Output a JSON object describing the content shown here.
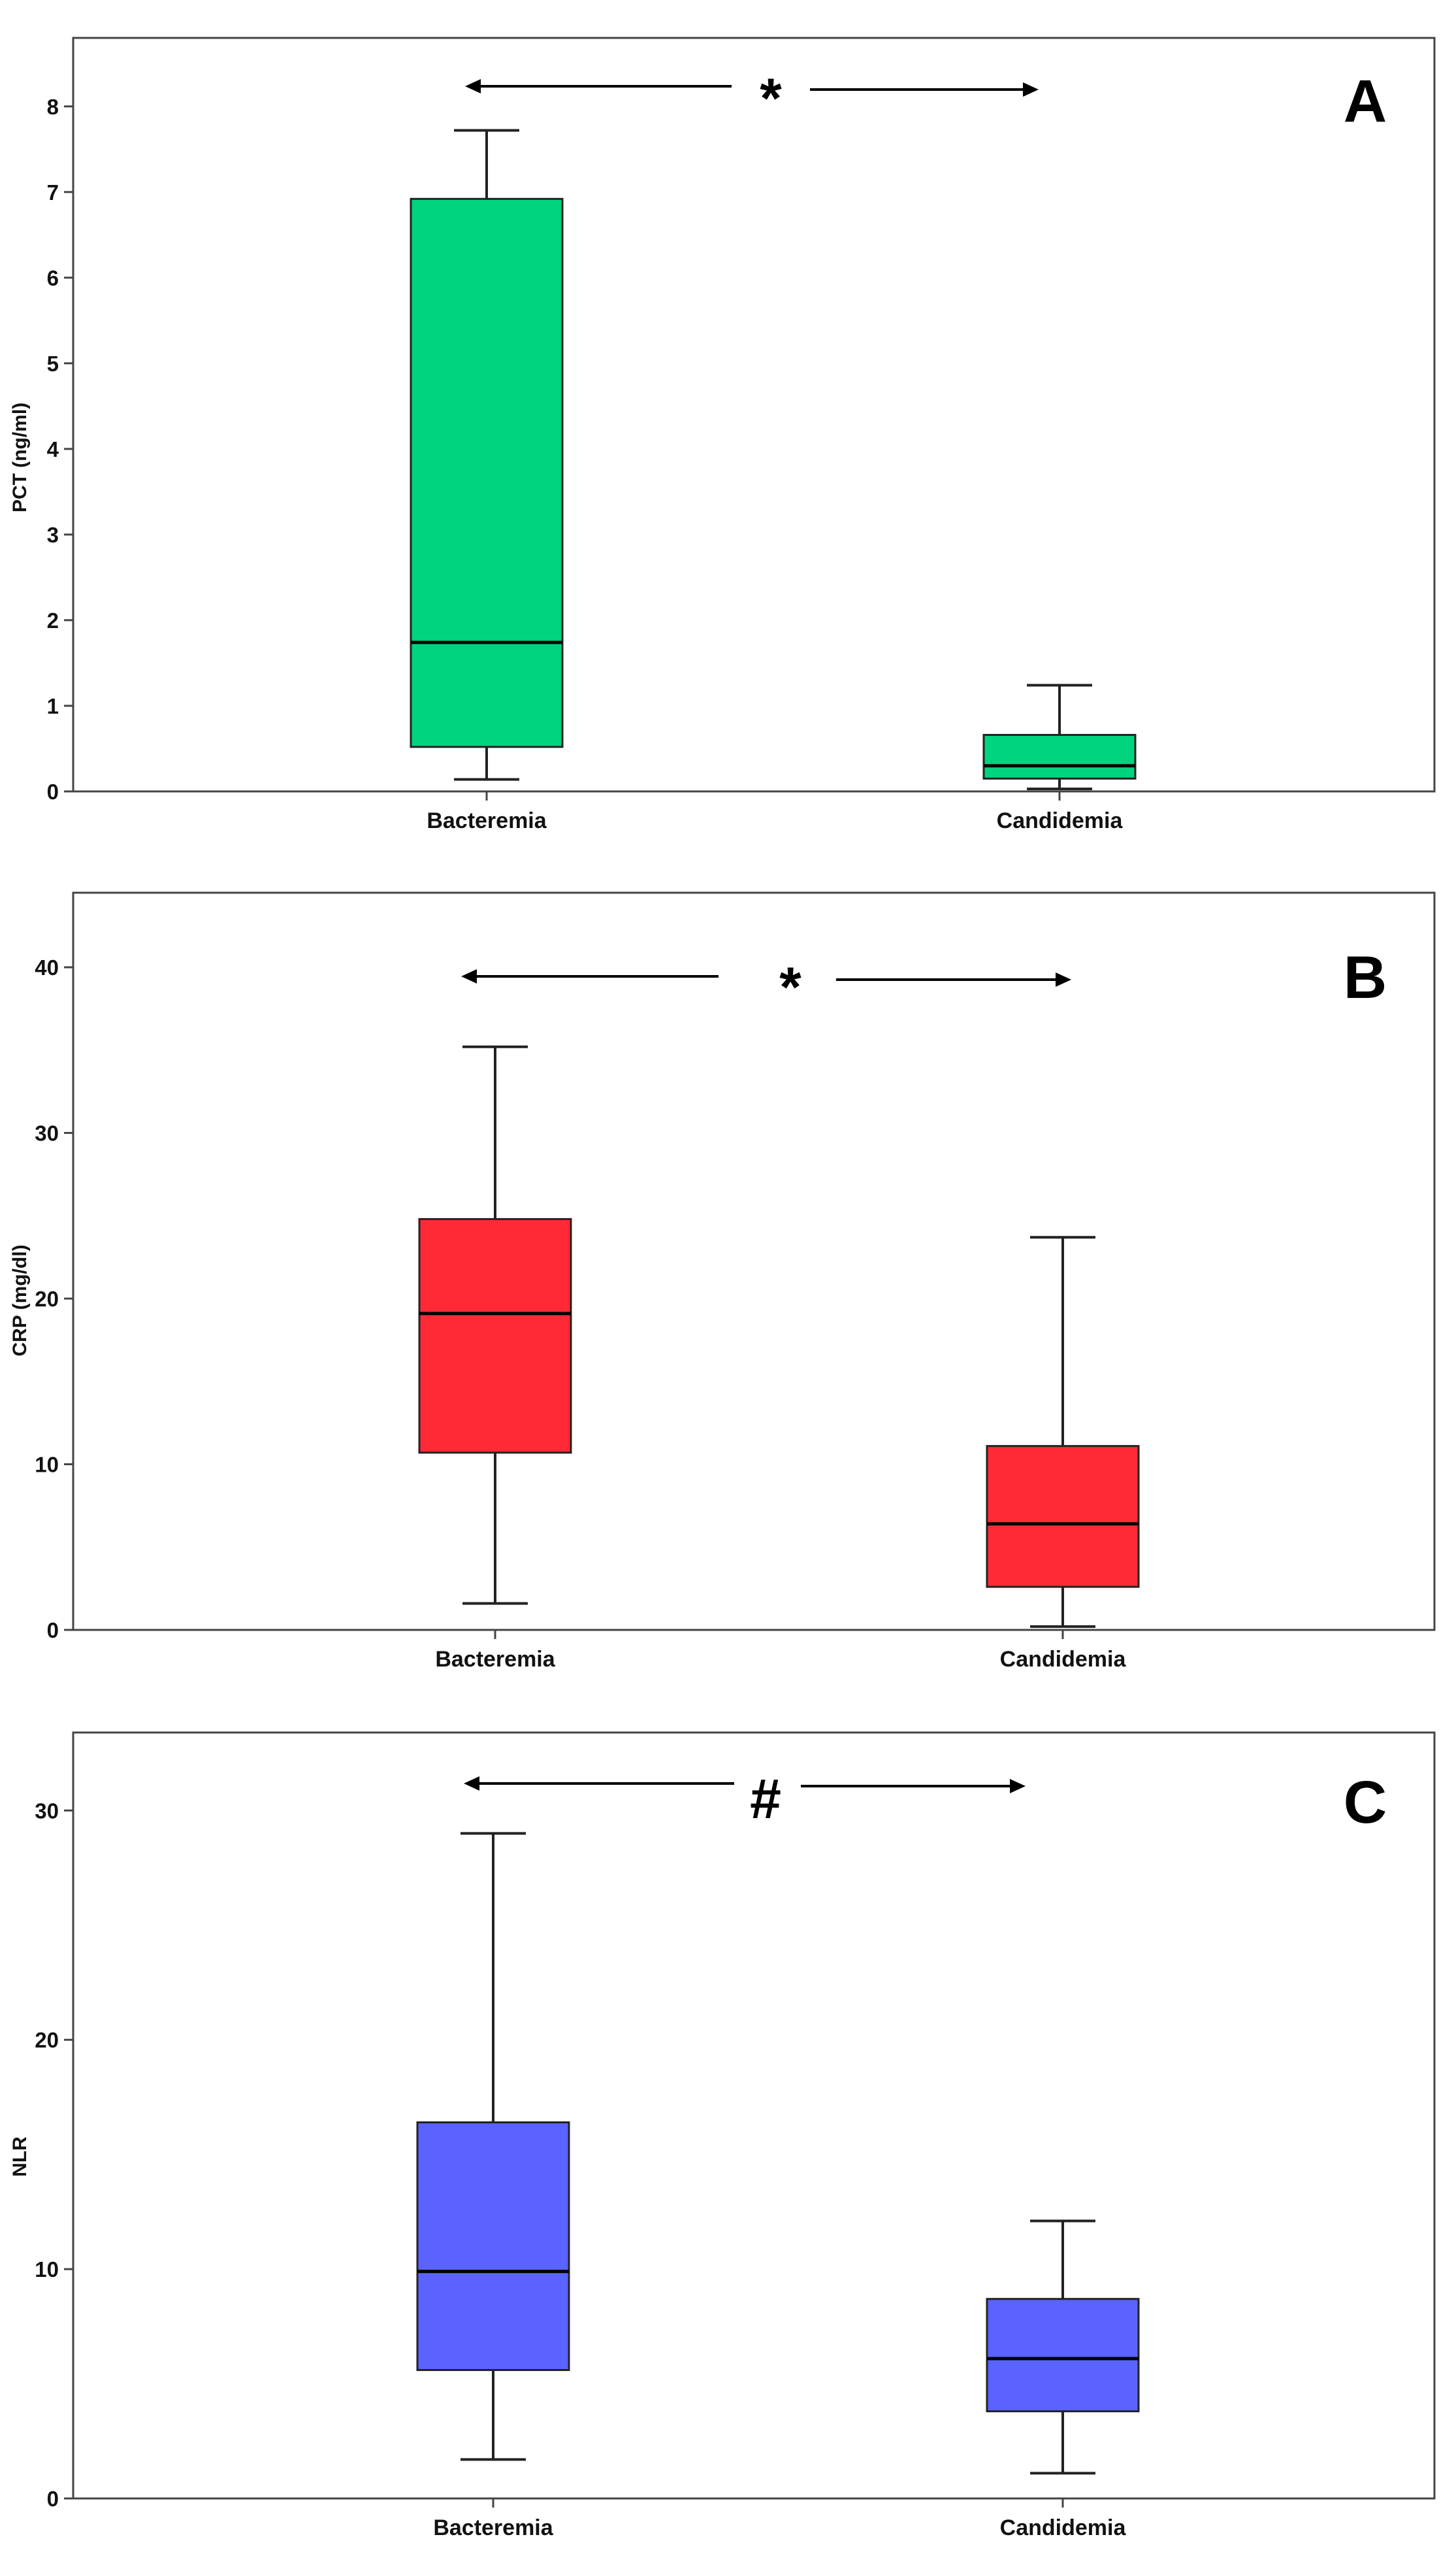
{
  "chart_data": [
    {
      "type": "box",
      "panel_label": "A",
      "ylabel": "PCT (ng/ml)",
      "xlabel": "",
      "ylim": [
        0,
        8.8
      ],
      "yticks": [
        0,
        1,
        2,
        3,
        4,
        5,
        6,
        7,
        8
      ],
      "categories": [
        "Bacteremia",
        "Candidemia"
      ],
      "boxes": [
        {
          "name": "Bacteremia",
          "whisker_low": 0.14,
          "q1": 0.52,
          "median": 1.74,
          "q3": 6.92,
          "whisker_high": 7.72
        },
        {
          "name": "Candidemia",
          "whisker_low": 0.03,
          "q1": 0.15,
          "median": 0.3,
          "q3": 0.66,
          "whisker_high": 1.24
        }
      ],
      "color": "#00d47f",
      "significance_mark": "*",
      "legend": "none",
      "grid": false
    },
    {
      "type": "box",
      "panel_label": "B",
      "ylabel": "CRP (mg/dl)",
      "xlabel": "",
      "ylim": [
        0,
        44.5
      ],
      "yticks": [
        0,
        10,
        20,
        30,
        40
      ],
      "categories": [
        "Bacteremia",
        "Candidemia"
      ],
      "boxes": [
        {
          "name": "Bacteremia",
          "whisker_low": 1.6,
          "q1": 10.7,
          "median": 19.1,
          "q3": 24.8,
          "whisker_high": 35.2
        },
        {
          "name": "Candidemia",
          "whisker_low": 0.2,
          "q1": 2.6,
          "median": 6.4,
          "q3": 11.1,
          "whisker_high": 23.7
        }
      ],
      "color": "#ff2a36",
      "significance_mark": "*",
      "legend": "none",
      "grid": false
    },
    {
      "type": "box",
      "panel_label": "C",
      "ylabel": "NLR",
      "xlabel": "",
      "ylim": [
        0,
        33.4
      ],
      "yticks": [
        0,
        10,
        20,
        30
      ],
      "categories": [
        "Bacteremia",
        "Candidemia"
      ],
      "boxes": [
        {
          "name": "Bacteremia",
          "whisker_low": 1.7,
          "q1": 5.6,
          "median": 9.9,
          "q3": 16.4,
          "whisker_high": 29.0
        },
        {
          "name": "Candidemia",
          "whisker_low": 1.1,
          "q1": 3.8,
          "median": 6.1,
          "q3": 8.7,
          "whisker_high": 12.1
        }
      ],
      "color": "#5a63ff",
      "significance_mark": "#",
      "legend": "none",
      "grid": false
    }
  ]
}
